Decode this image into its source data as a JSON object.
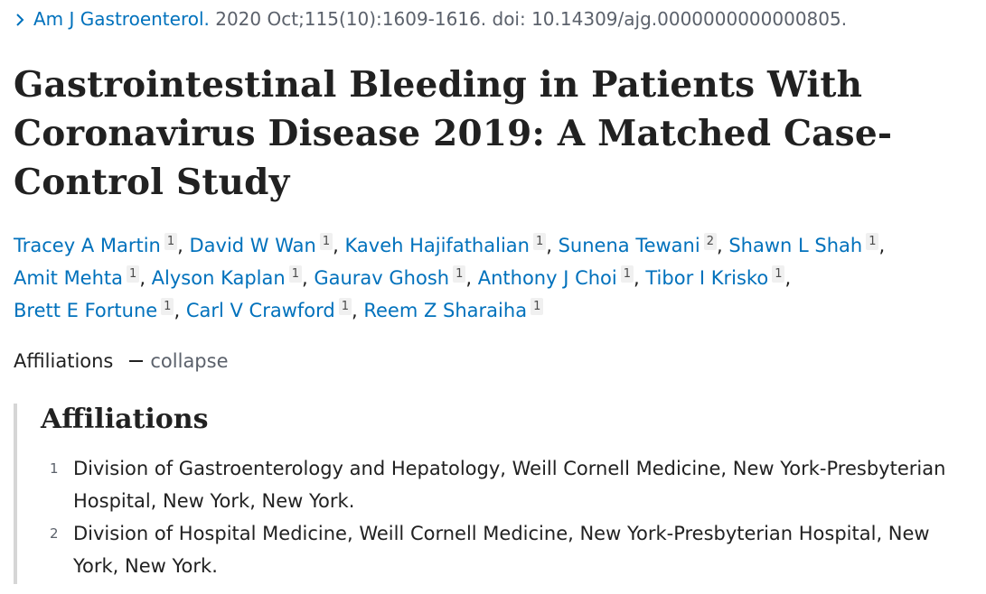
{
  "citation": {
    "journal": "Am J Gastroenterol.",
    "details": " 2020 Oct;115(10):1609-1616. doi: 10.14309/ajg.0000000000000805."
  },
  "title": "Gastrointestinal Bleeding in Patients With Coronavirus Disease 2019: A Matched Case-Control Study",
  "authors": [
    {
      "name": "Tracey A Martin",
      "aff": "1"
    },
    {
      "name": "David W Wan",
      "aff": "1"
    },
    {
      "name": "Kaveh Hajifathalian",
      "aff": "1"
    },
    {
      "name": "Sunena Tewani",
      "aff": "2"
    },
    {
      "name": "Shawn L Shah",
      "aff": "1"
    },
    {
      "name": "Amit Mehta",
      "aff": "1"
    },
    {
      "name": "Alyson Kaplan",
      "aff": "1"
    },
    {
      "name": "Gaurav Ghosh",
      "aff": "1"
    },
    {
      "name": "Anthony J Choi",
      "aff": "1"
    },
    {
      "name": "Tibor I Krisko",
      "aff": "1"
    },
    {
      "name": "Brett E Fortune",
      "aff": "1"
    },
    {
      "name": "Carl V Crawford",
      "aff": "1"
    },
    {
      "name": "Reem Z Sharaiha",
      "aff": "1"
    }
  ],
  "affiliations_toggle": {
    "label": "Affiliations",
    "action": "collapse"
  },
  "affiliations": {
    "heading": "Affiliations",
    "items": [
      {
        "num": "1",
        "text": "Division of Gastroenterology and Hepatology, Weill Cornell Medicine, New York-Presbyterian Hospital, New York, New York."
      },
      {
        "num": "2",
        "text": "Division of Hospital Medicine, Weill Cornell Medicine, New York-Presbyterian Hospital, New York, New York."
      }
    ]
  },
  "colors": {
    "link": "#0071bc",
    "text": "#212121",
    "muted": "#5b616b",
    "panel_border": "#d6d6d6",
    "ref_badge_bg": "#f0f0f0"
  }
}
